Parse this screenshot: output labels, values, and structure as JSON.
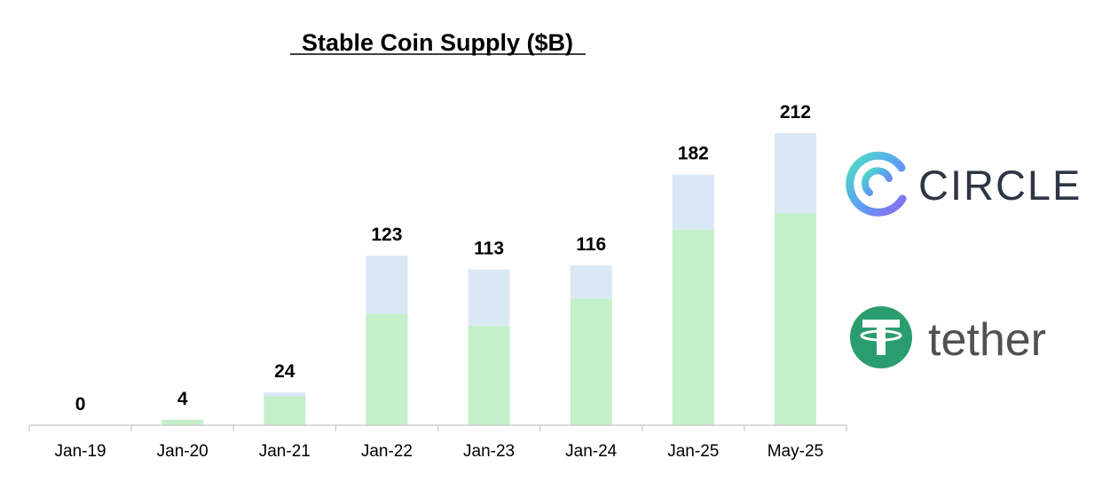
{
  "chart_data": {
    "type": "bar",
    "stacked": true,
    "title": "Stable Coin Supply ($B)",
    "xlabel": "",
    "ylabel": "",
    "ylim": [
      0,
      212
    ],
    "grid": false,
    "categories": [
      "Jan-19",
      "Jan-20",
      "Jan-21",
      "Jan-22",
      "Jan-23",
      "Jan-24",
      "Jan-25",
      "May-25"
    ],
    "series": [
      {
        "name": "tether",
        "color": "#c3f0c8",
        "values": [
          0,
          4,
          21,
          81,
          72,
          92,
          142,
          154
        ]
      },
      {
        "name": "circle",
        "color": "#dae8f6",
        "values": [
          0,
          0,
          3,
          42,
          41,
          24,
          40,
          58
        ]
      }
    ],
    "totals": [
      "0",
      "4",
      "24",
      "123",
      "113",
      "116",
      "182",
      "212"
    ],
    "legend": [
      {
        "name": "CIRCLE",
        "icon": "circle-logo-icon",
        "colors": [
          "#4ee0c2",
          "#5aa3f0",
          "#8a6bf2"
        ]
      },
      {
        "name": "tether",
        "icon": "tether-logo-icon",
        "colors": [
          "#2a9d6e",
          "#ffffff"
        ]
      }
    ]
  }
}
